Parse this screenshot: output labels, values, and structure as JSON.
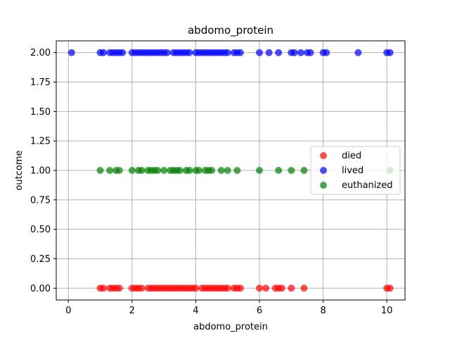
{
  "chart_data": {
    "type": "scatter",
    "title": "abdomo_protein",
    "xlabel": "abdomo_protein",
    "ylabel": "outcome",
    "xlim": [
      -0.38,
      10.57
    ],
    "ylim": [
      -0.1,
      2.1
    ],
    "xticks": [
      "0",
      "2",
      "4",
      "6",
      "8",
      "10"
    ],
    "yticks": [
      "0.00",
      "0.25",
      "0.50",
      "0.75",
      "1.00",
      "1.25",
      "1.50",
      "1.75",
      "2.00"
    ],
    "grid": true,
    "legend_position": "center-right",
    "series": [
      {
        "name": "died",
        "color": "#ff0000",
        "y": 0,
        "x": [
          1.0,
          1.1,
          1.3,
          1.4,
          1.5,
          1.6,
          2.0,
          2.1,
          2.2,
          2.3,
          2.5,
          2.6,
          2.7,
          2.8,
          2.9,
          3.0,
          3.1,
          3.2,
          3.3,
          3.4,
          3.5,
          3.6,
          3.7,
          3.8,
          3.9,
          4.0,
          4.2,
          4.3,
          4.4,
          4.5,
          4.6,
          4.7,
          4.8,
          4.9,
          5.0,
          5.2,
          5.3,
          5.4,
          6.0,
          6.2,
          6.5,
          6.6,
          6.7,
          7.0,
          7.4,
          10.0,
          10.1
        ]
      },
      {
        "name": "lived",
        "color": "#0000ff",
        "y": 2,
        "x": [
          0.1,
          1.0,
          1.1,
          1.3,
          1.4,
          1.5,
          1.6,
          1.7,
          2.0,
          2.1,
          2.2,
          2.3,
          2.4,
          2.5,
          2.6,
          2.7,
          2.8,
          2.9,
          3.0,
          3.1,
          3.3,
          3.4,
          3.5,
          3.6,
          3.7,
          3.8,
          4.0,
          4.1,
          4.2,
          4.3,
          4.4,
          4.5,
          4.6,
          4.7,
          4.8,
          4.9,
          5.0,
          5.2,
          5.3,
          5.4,
          6.0,
          6.3,
          6.6,
          7.0,
          7.1,
          7.3,
          7.5,
          7.6,
          8.0,
          8.1,
          9.1,
          10.0,
          10.1
        ]
      },
      {
        "name": "euthanized",
        "color": "#008000",
        "y": 1,
        "x": [
          1.0,
          1.3,
          1.5,
          1.6,
          2.0,
          2.2,
          2.3,
          2.5,
          2.6,
          2.7,
          2.8,
          3.0,
          3.2,
          3.3,
          3.4,
          3.5,
          3.7,
          3.8,
          4.0,
          4.1,
          4.3,
          4.4,
          4.5,
          4.8,
          5.0,
          5.3,
          6.0,
          6.6,
          7.0,
          7.4,
          10.1
        ]
      }
    ]
  }
}
